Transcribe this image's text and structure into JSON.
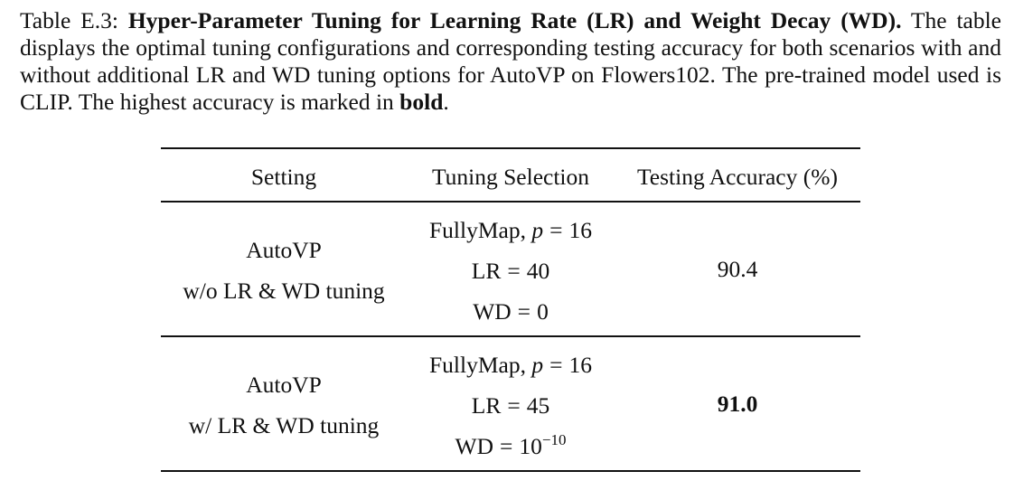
{
  "caption": {
    "label": "Table E.3:",
    "title": "Hyper-Parameter Tuning for Learning Rate (LR) and Weight Decay (WD).",
    "body_1": "The table displays the optimal tuning configurations and corresponding testing accuracy for both scenarios with and without additional LR and WD tuning options for AutoVP on Flowers102. The pre-trained model used is CLIP. The highest accuracy is marked in",
    "bold_word": "bold",
    "end": "."
  },
  "table": {
    "headers": [
      "Setting",
      "Tuning Selection",
      "Testing Accuracy (%)"
    ],
    "rows": [
      {
        "setting_line1": "AutoVP",
        "setting_line2": "w/o LR & WD tuning",
        "mapping": "FullyMap,",
        "p_var": "p",
        "eq": "=",
        "p_value": "16",
        "lr_label": "LR",
        "lr_value": "40",
        "wd_label": "WD",
        "wd_value": "0",
        "accuracy": "90.4"
      },
      {
        "setting_line1": "AutoVP",
        "setting_line2": "w/ LR & WD tuning",
        "mapping": "FullyMap,",
        "p_var": "p",
        "eq": "=",
        "p_value": "16",
        "lr_label": "LR",
        "lr_value": "45",
        "wd_label": "WD",
        "wd_base": "10",
        "wd_exp": "−10",
        "accuracy": "91.0"
      }
    ]
  }
}
